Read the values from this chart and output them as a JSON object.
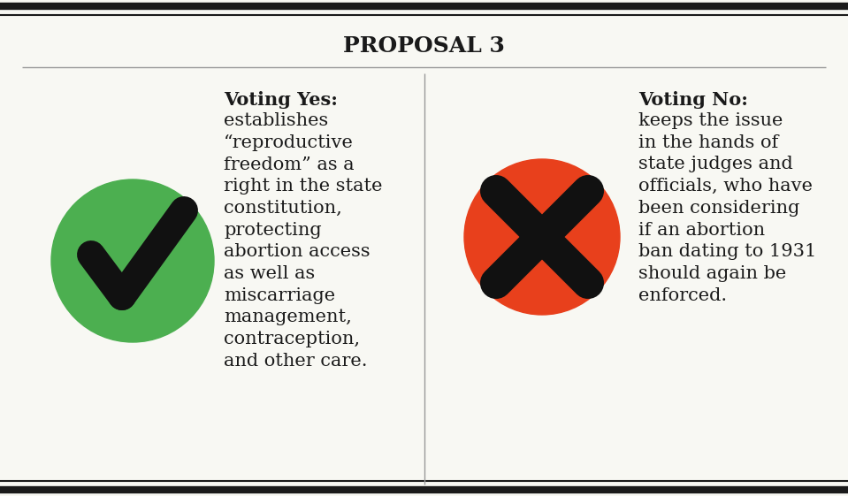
{
  "title": "PROPOSAL 3",
  "bg_color": "#f8f8f3",
  "border_color": "#1a1a1a",
  "divider_color": "#999999",
  "green_color": "#4caf50",
  "red_color": "#e8401c",
  "text_color": "#1a1a1a",
  "yes_label": "Voting Yes:",
  "yes_text": "establishes\n“reproductive\nfreedom” as a\nright in the state\nconstitution,\nprotecting\nabortion access\nas well as\nmiscarriage\nmanagement,\ncontraception,\nand other care.",
  "no_label": "Voting No:",
  "no_text": "keeps the issue\nin the hands of\nstate judges and\nofficials, who have\nbeen considering\nif an abortion\nban dating to 1931\nshould again be\nenforced."
}
